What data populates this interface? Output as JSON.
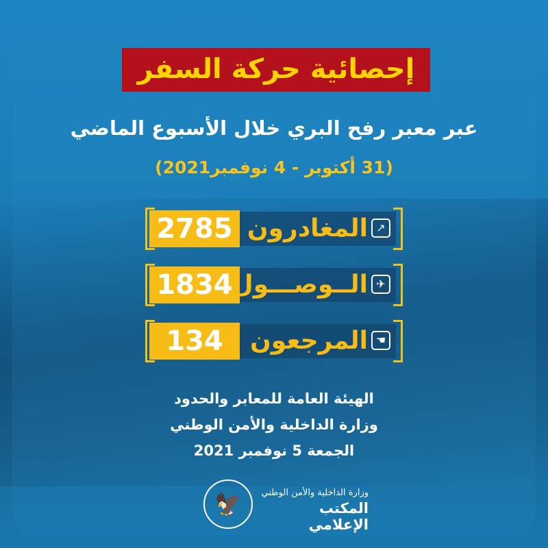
{
  "title": "إحصائية حركة السفر",
  "subtitle": "عبر معبر رفح البري خلال الأسبوع الماضي",
  "date_range": "(31 أكتوبر - 4 نوفمبر2021)",
  "stats": [
    {
      "label": "المغادرون",
      "value": "2785",
      "icon": "departure-icon"
    },
    {
      "label": "الــوصـــول",
      "value": "1834",
      "icon": "arrival-plane-icon"
    },
    {
      "label": "المرجعون",
      "value": "134",
      "icon": "returned-hand-icon"
    }
  ],
  "footer": {
    "line1": "الهيئة العامة للمعابر والحدود",
    "line2": "وزارة الداخلية والأمن الوطني",
    "line3": "الجمعة 5 نوفمبر 2021"
  },
  "logo": {
    "ministry": "وزارة الداخلية والأمن الوطني",
    "office": "المكتب الإعلامي",
    "icon": "eagle-emblem-icon"
  },
  "colors": {
    "title_bg": "#b3121c",
    "accent_yellow": "#f7bc16",
    "background": "#1a7db8"
  }
}
